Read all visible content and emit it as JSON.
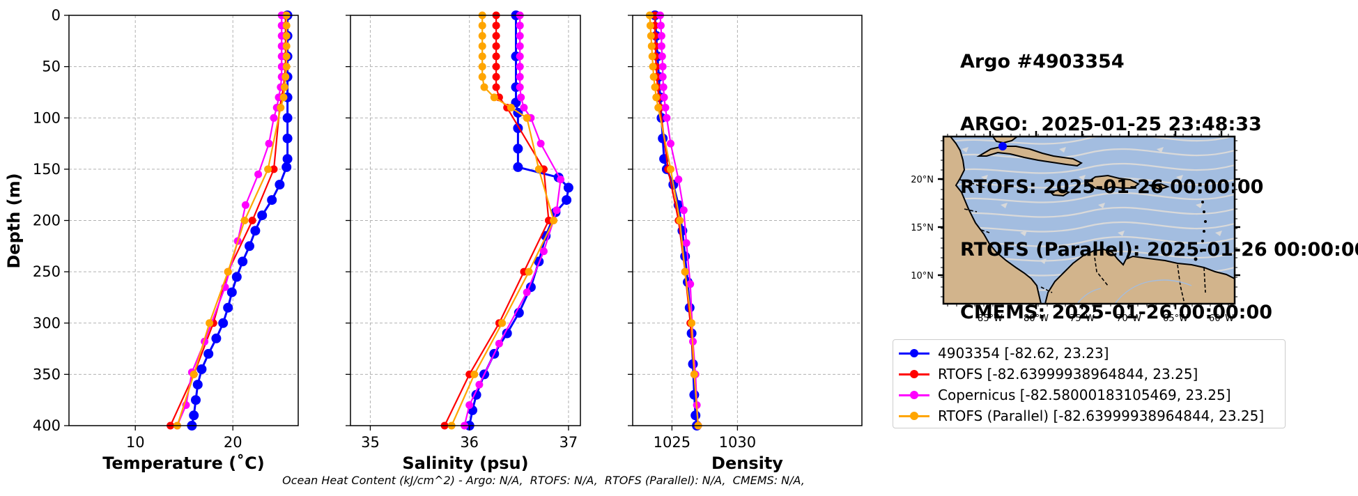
{
  "title": {
    "line1": "Argo #4903354",
    "line2": "ARGO:  2025-01-25 23:48:33",
    "line3": "RTOFS: 2025-01-26 00:00:00",
    "line4": "RTOFS (Parallel): 2025-01-26 00:00:00",
    "line5": "CMEMS: 2025-01-26 00:00:00"
  },
  "footer": "Ocean Heat Content (kJ/cm^2) - Argo: N/A,  RTOFS: N/A,  RTOFS (Parallel): N/A,  CMEMS: N/A,",
  "colors": {
    "argo": "#0000ff",
    "rtofs": "#ff0000",
    "copernicus": "#ff00ff",
    "parallel": "#ffa500",
    "ocean": "#a3bde0",
    "land": "#d2b48c",
    "stream": "#d9d9d9"
  },
  "legend": [
    {
      "label": "4903354 [-82.62, 23.23]",
      "color": "#0000ff"
    },
    {
      "label": "RTOFS [-82.63999938964844, 23.25]",
      "color": "#ff0000"
    },
    {
      "label": "Copernicus [-82.58000183105469, 23.25]",
      "color": "#ff00ff"
    },
    {
      "label": "RTOFS (Parallel) [-82.63999938964844, 23.25]",
      "color": "#ffa500"
    }
  ],
  "map": {
    "lon_ticks": [
      "85°W",
      "80°W",
      "75°W",
      "70°W",
      "65°W",
      "60°W"
    ],
    "lat_ticks": [
      "20°N",
      "15°N",
      "10°N"
    ],
    "float_position": {
      "lon": -82.62,
      "lat": 23.23
    }
  },
  "chart_data": [
    {
      "type": "line",
      "xlabel": "Temperature (˚C)",
      "ylabel": "Depth (m)",
      "xlim": [
        3.2,
        26.7
      ],
      "ylim": [
        400,
        0
      ],
      "xticks": [
        10,
        20
      ],
      "yticks": [
        0,
        50,
        100,
        150,
        200,
        250,
        300,
        350,
        400
      ],
      "grid": true,
      "series": [
        {
          "name": "4903354",
          "points": [
            [
              25.6,
              0
            ],
            [
              25.6,
              20
            ],
            [
              25.6,
              40
            ],
            [
              25.6,
              60
            ],
            [
              25.6,
              80
            ],
            [
              25.6,
              100
            ],
            [
              25.6,
              120
            ],
            [
              25.6,
              140
            ],
            [
              25.5,
              148
            ],
            [
              24.8,
              165
            ],
            [
              24.0,
              180
            ],
            [
              23.0,
              195
            ],
            [
              22.3,
              210
            ],
            [
              21.7,
              225
            ],
            [
              21.0,
              240
            ],
            [
              20.4,
              255
            ],
            [
              19.9,
              270
            ],
            [
              19.5,
              285
            ],
            [
              19.0,
              300
            ],
            [
              18.3,
              315
            ],
            [
              17.5,
              330
            ],
            [
              16.8,
              345
            ],
            [
              16.4,
              360
            ],
            [
              16.2,
              375
            ],
            [
              16.0,
              390
            ],
            [
              15.8,
              400
            ]
          ]
        },
        {
          "name": "RTOFS",
          "points": [
            [
              25.4,
              0
            ],
            [
              25.4,
              10
            ],
            [
              25.4,
              20
            ],
            [
              25.4,
              30
            ],
            [
              25.4,
              40
            ],
            [
              25.4,
              50
            ],
            [
              25.3,
              60
            ],
            [
              25.2,
              70
            ],
            [
              25.0,
              80
            ],
            [
              24.8,
              90
            ],
            [
              24.2,
              150
            ],
            [
              22.0,
              200
            ],
            [
              19.5,
              250
            ],
            [
              18.0,
              300
            ],
            [
              16.0,
              350
            ],
            [
              13.6,
              400
            ]
          ]
        },
        {
          "name": "Copernicus",
          "points": [
            [
              25.0,
              0
            ],
            [
              25.0,
              10
            ],
            [
              25.0,
              20
            ],
            [
              25.0,
              30
            ],
            [
              25.0,
              40
            ],
            [
              25.0,
              50
            ],
            [
              25.0,
              60
            ],
            [
              24.9,
              70
            ],
            [
              24.7,
              80
            ],
            [
              24.5,
              90
            ],
            [
              24.2,
              100
            ],
            [
              23.7,
              125
            ],
            [
              22.6,
              155
            ],
            [
              21.3,
              185
            ],
            [
              20.5,
              220
            ],
            [
              19.2,
              265
            ],
            [
              17.1,
              318
            ],
            [
              15.8,
              348
            ],
            [
              15.2,
              380
            ],
            [
              14.3,
              400
            ]
          ]
        },
        {
          "name": "RTOFS (Parallel)",
          "points": [
            [
              25.5,
              0
            ],
            [
              25.5,
              10
            ],
            [
              25.5,
              20
            ],
            [
              25.5,
              30
            ],
            [
              25.5,
              40
            ],
            [
              25.5,
              50
            ],
            [
              25.4,
              60
            ],
            [
              25.3,
              70
            ],
            [
              25.2,
              80
            ],
            [
              24.9,
              90
            ],
            [
              23.6,
              150
            ],
            [
              21.2,
              200
            ],
            [
              19.5,
              250
            ],
            [
              17.6,
              300
            ],
            [
              16.0,
              350
            ],
            [
              14.3,
              400
            ]
          ]
        }
      ]
    },
    {
      "type": "line",
      "xlabel": "Salinity (psu)",
      "ylabel": "",
      "xlim": [
        34.8,
        37.12
      ],
      "ylim": [
        400,
        0
      ],
      "xticks": [
        35,
        36,
        37
      ],
      "yticks": [
        0,
        50,
        100,
        150,
        200,
        250,
        300,
        350,
        400
      ],
      "grid": true,
      "series": [
        {
          "name": "4903354",
          "points": [
            [
              36.47,
              0
            ],
            [
              36.47,
              40
            ],
            [
              36.47,
              70
            ],
            [
              36.47,
              85
            ],
            [
              36.49,
              95
            ],
            [
              36.49,
              110
            ],
            [
              36.49,
              130
            ],
            [
              36.49,
              148
            ],
            [
              36.9,
              158
            ],
            [
              37.0,
              168
            ],
            [
              36.98,
              180
            ],
            [
              36.87,
              192
            ],
            [
              36.77,
              215
            ],
            [
              36.7,
              240
            ],
            [
              36.62,
              265
            ],
            [
              36.5,
              290
            ],
            [
              36.38,
              310
            ],
            [
              36.25,
              330
            ],
            [
              36.15,
              350
            ],
            [
              36.07,
              370
            ],
            [
              36.03,
              385
            ],
            [
              36.0,
              400
            ]
          ]
        },
        {
          "name": "RTOFS",
          "points": [
            [
              36.27,
              0
            ],
            [
              36.27,
              10
            ],
            [
              36.27,
              20
            ],
            [
              36.27,
              30
            ],
            [
              36.27,
              40
            ],
            [
              36.27,
              50
            ],
            [
              36.27,
              60
            ],
            [
              36.27,
              70
            ],
            [
              36.3,
              80
            ],
            [
              36.38,
              90
            ],
            [
              36.75,
              150
            ],
            [
              36.8,
              200
            ],
            [
              36.55,
              250
            ],
            [
              36.3,
              300
            ],
            [
              36.0,
              350
            ],
            [
              35.75,
              400
            ]
          ]
        },
        {
          "name": "Copernicus",
          "points": [
            [
              36.51,
              0
            ],
            [
              36.51,
              10
            ],
            [
              36.51,
              20
            ],
            [
              36.51,
              30
            ],
            [
              36.51,
              40
            ],
            [
              36.51,
              50
            ],
            [
              36.51,
              60
            ],
            [
              36.51,
              70
            ],
            [
              36.52,
              80
            ],
            [
              36.55,
              90
            ],
            [
              36.62,
              100
            ],
            [
              36.72,
              125
            ],
            [
              36.92,
              160
            ],
            [
              36.88,
              190
            ],
            [
              36.75,
              230
            ],
            [
              36.58,
              270
            ],
            [
              36.3,
              320
            ],
            [
              36.1,
              360
            ],
            [
              36.0,
              380
            ],
            [
              35.95,
              400
            ]
          ]
        },
        {
          "name": "RTOFS (Parallel)",
          "points": [
            [
              36.13,
              0
            ],
            [
              36.13,
              10
            ],
            [
              36.13,
              20
            ],
            [
              36.13,
              30
            ],
            [
              36.13,
              40
            ],
            [
              36.13,
              50
            ],
            [
              36.13,
              60
            ],
            [
              36.15,
              70
            ],
            [
              36.25,
              80
            ],
            [
              36.42,
              90
            ],
            [
              36.58,
              100
            ],
            [
              36.7,
              150
            ],
            [
              36.85,
              200
            ],
            [
              36.6,
              250
            ],
            [
              36.33,
              300
            ],
            [
              36.05,
              350
            ],
            [
              35.82,
              400
            ]
          ]
        }
      ]
    },
    {
      "type": "line",
      "xlabel": "Density",
      "ylabel": "",
      "xlim": [
        1022.0,
        1039.5
      ],
      "ylim": [
        400,
        0
      ],
      "xticks": [
        1025,
        1030
      ],
      "yticks": [
        0,
        50,
        100,
        150,
        200,
        250,
        300,
        350,
        400
      ],
      "grid": true,
      "series": [
        {
          "name": "4903354",
          "points": [
            [
              1023.7,
              0
            ],
            [
              1023.8,
              20
            ],
            [
              1023.9,
              40
            ],
            [
              1024.0,
              60
            ],
            [
              1024.1,
              80
            ],
            [
              1024.2,
              100
            ],
            [
              1024.3,
              120
            ],
            [
              1024.4,
              140
            ],
            [
              1024.6,
              150
            ],
            [
              1025.1,
              165
            ],
            [
              1025.5,
              185
            ],
            [
              1025.8,
              210
            ],
            [
              1026.0,
              235
            ],
            [
              1026.2,
              260
            ],
            [
              1026.35,
              285
            ],
            [
              1026.5,
              310
            ],
            [
              1026.6,
              340
            ],
            [
              1026.7,
              370
            ],
            [
              1026.8,
              390
            ],
            [
              1026.9,
              400
            ]
          ]
        },
        {
          "name": "RTOFS",
          "points": [
            [
              1023.7,
              0
            ],
            [
              1023.7,
              10
            ],
            [
              1023.7,
              20
            ],
            [
              1023.75,
              30
            ],
            [
              1023.75,
              40
            ],
            [
              1023.8,
              50
            ],
            [
              1023.85,
              60
            ],
            [
              1023.9,
              70
            ],
            [
              1024.0,
              80
            ],
            [
              1024.1,
              90
            ],
            [
              1024.7,
              150
            ],
            [
              1025.5,
              200
            ],
            [
              1026.0,
              250
            ],
            [
              1026.4,
              300
            ],
            [
              1026.7,
              350
            ],
            [
              1027.0,
              400
            ]
          ]
        },
        {
          "name": "Copernicus",
          "points": [
            [
              1024.1,
              0
            ],
            [
              1024.15,
              10
            ],
            [
              1024.2,
              20
            ],
            [
              1024.2,
              30
            ],
            [
              1024.25,
              40
            ],
            [
              1024.3,
              50
            ],
            [
              1024.3,
              60
            ],
            [
              1024.35,
              70
            ],
            [
              1024.4,
              80
            ],
            [
              1024.5,
              90
            ],
            [
              1024.6,
              100
            ],
            [
              1024.9,
              125
            ],
            [
              1025.5,
              160
            ],
            [
              1025.9,
              190
            ],
            [
              1026.1,
              222
            ],
            [
              1026.4,
              262
            ],
            [
              1026.6,
              318
            ],
            [
              1026.8,
              350
            ],
            [
              1026.9,
              380
            ],
            [
              1027.0,
              400
            ]
          ]
        },
        {
          "name": "RTOFS (Parallel)",
          "points": [
            [
              1023.3,
              0
            ],
            [
              1023.35,
              10
            ],
            [
              1023.4,
              20
            ],
            [
              1023.45,
              30
            ],
            [
              1023.5,
              40
            ],
            [
              1023.55,
              50
            ],
            [
              1023.6,
              60
            ],
            [
              1023.7,
              70
            ],
            [
              1023.8,
              80
            ],
            [
              1023.95,
              90
            ],
            [
              1024.9,
              150
            ],
            [
              1025.6,
              200
            ],
            [
              1026.0,
              250
            ],
            [
              1026.5,
              300
            ],
            [
              1026.7,
              350
            ],
            [
              1027.0,
              400
            ]
          ]
        }
      ]
    }
  ]
}
